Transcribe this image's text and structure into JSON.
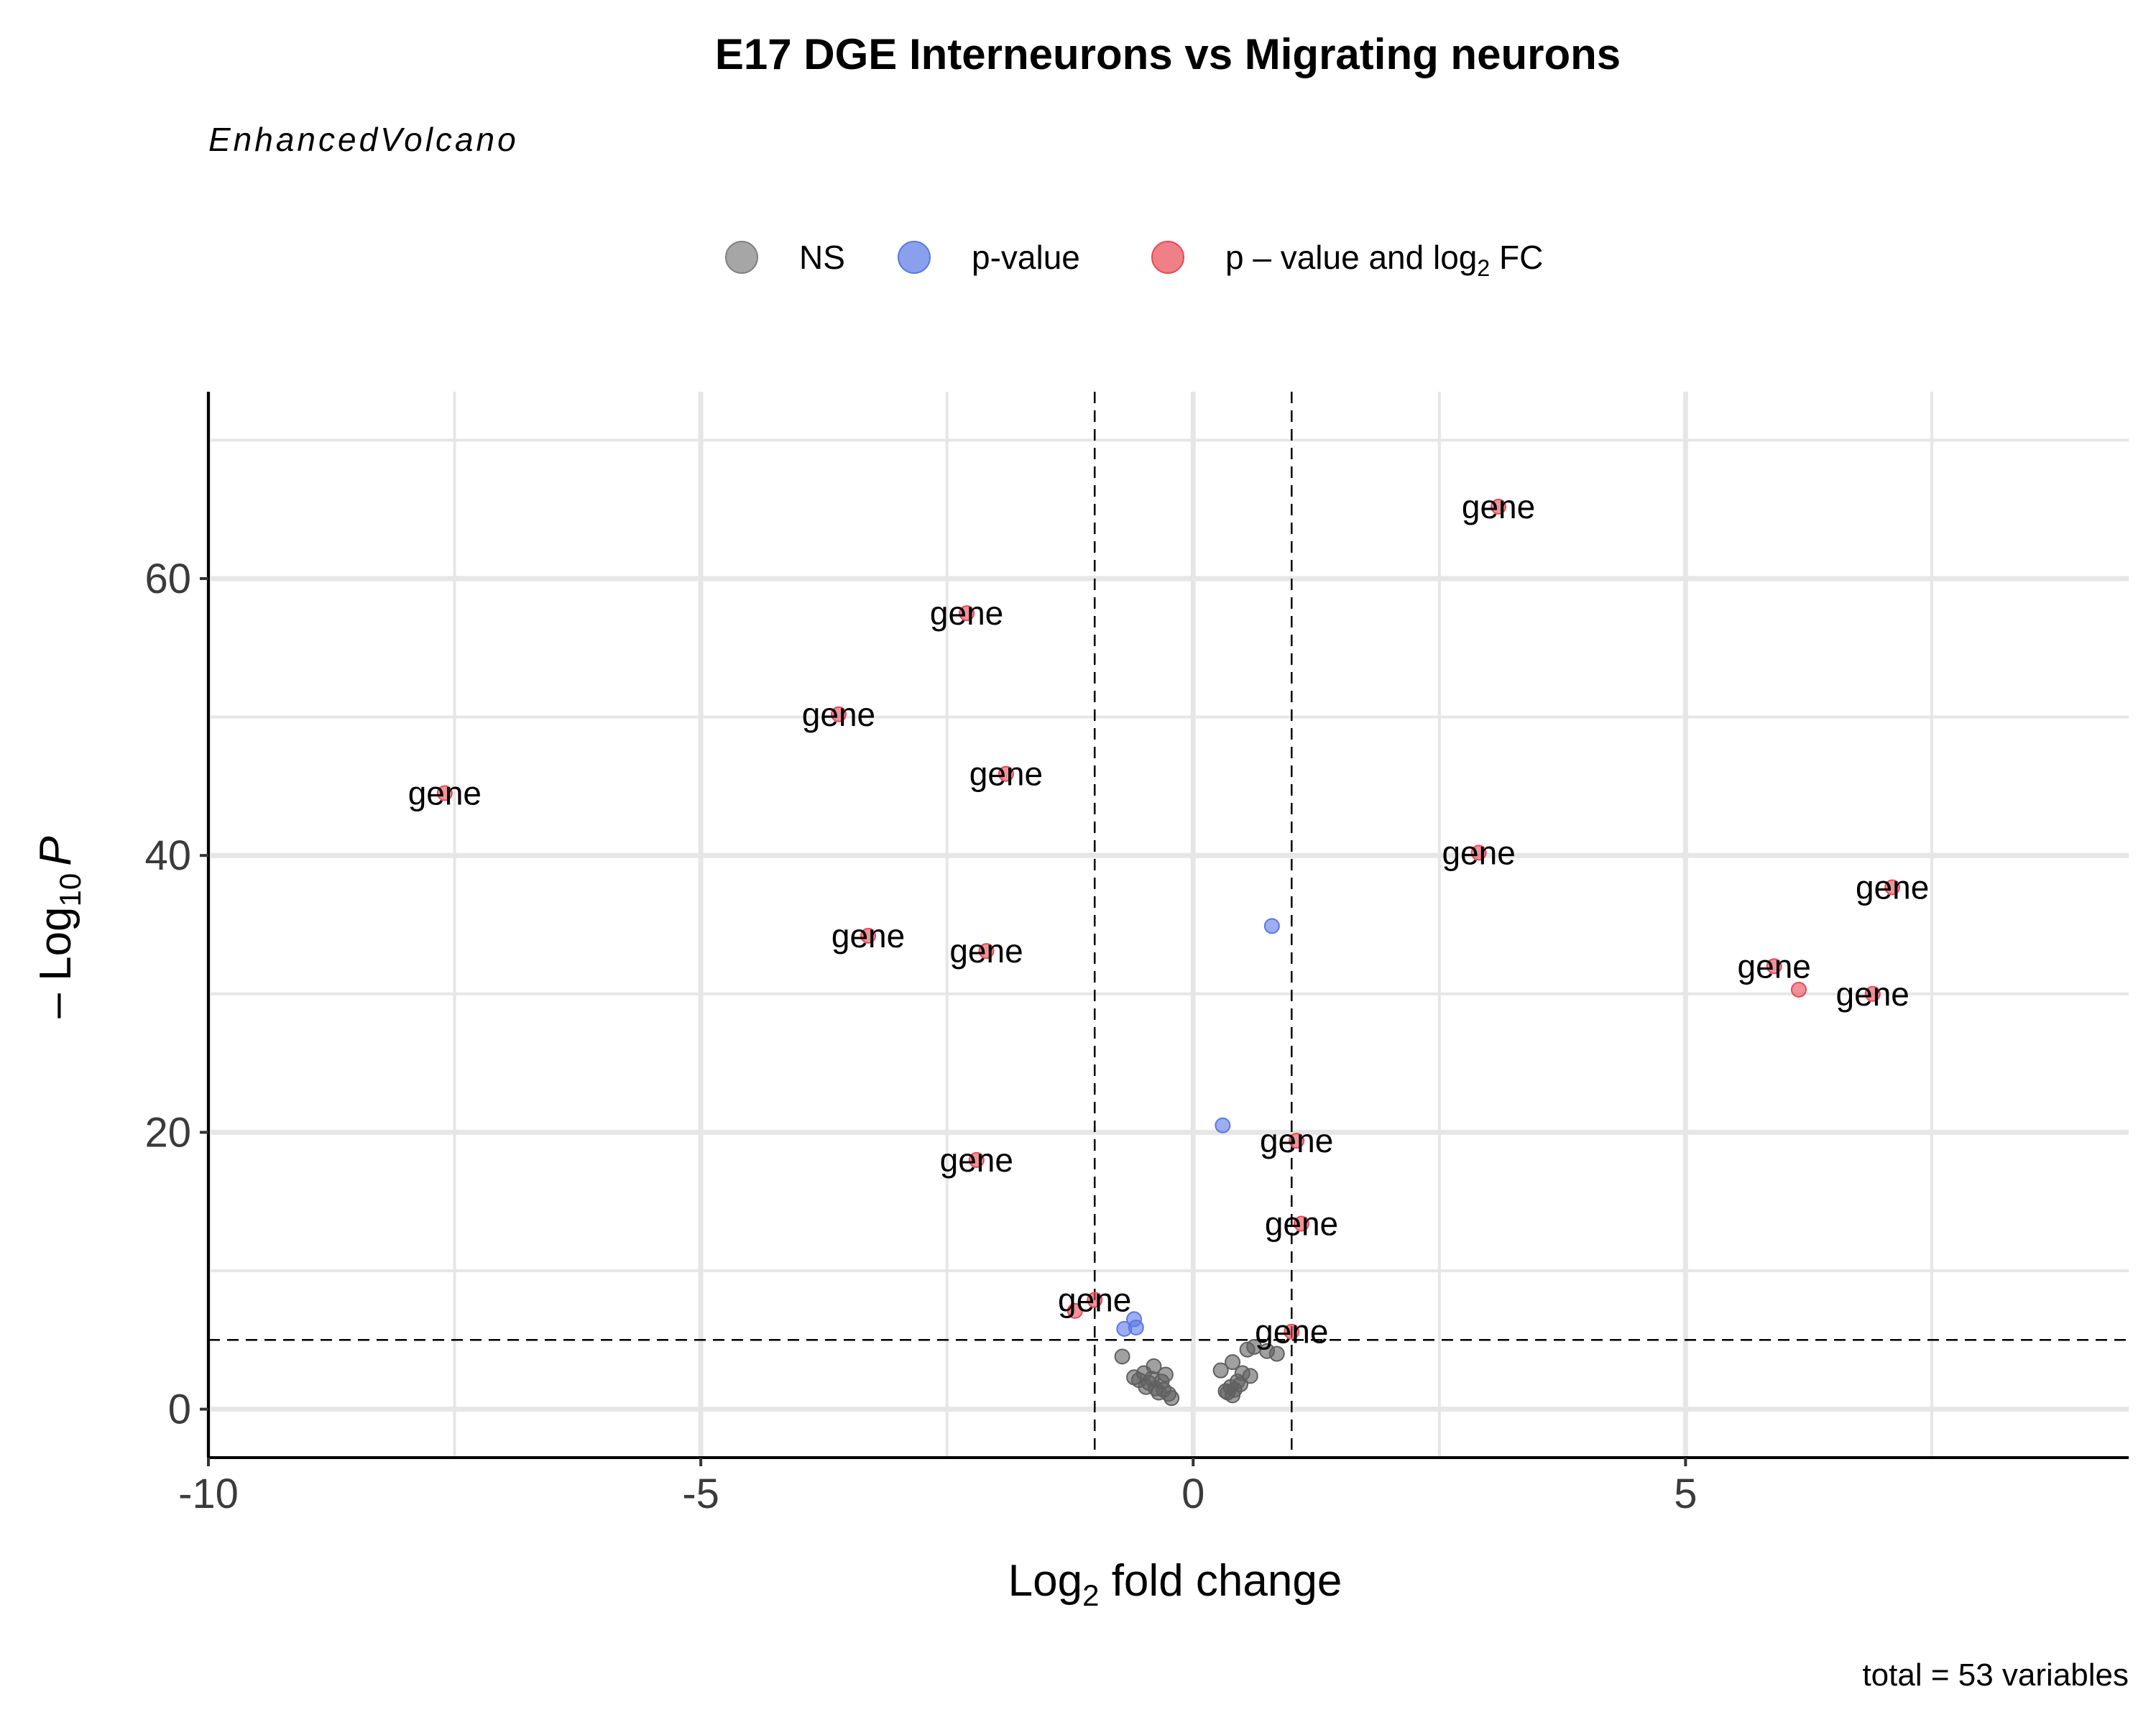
{
  "chart_data": {
    "type": "scatter",
    "title": "E17 DGE Interneurons vs Migrating neurons",
    "subtitle": "EnhancedVolcano",
    "xlabel_base": "Log",
    "xlabel_sub": "2",
    "xlabel_rest": " fold change",
    "ylabel_prefix": "– Log",
    "ylabel_sub": "10",
    "ylabel_var": "P",
    "caption": "total = 53 variables",
    "xlim": [
      -10,
      9.5
    ],
    "ylim": [
      -3.5,
      73.5
    ],
    "x_ticks": [
      -10,
      -5,
      0,
      5
    ],
    "x_tick_labels": [
      "-10",
      "-5",
      "0",
      "5"
    ],
    "y_ticks": [
      0,
      20,
      40,
      60
    ],
    "y_tick_labels": [
      "0",
      "20",
      "40",
      "60"
    ],
    "grid": true,
    "legend_position": "top",
    "fc_cutoff": 1,
    "p_cutoff_log10": 5,
    "legend": [
      {
        "key": "NS",
        "label": "NS",
        "color": "#808080"
      },
      {
        "key": "p",
        "label": "p-value",
        "color": "#5a78e6"
      },
      {
        "key": "pfc",
        "label_pre": "p – value and log",
        "label_sub": "2",
        "label_post": " FC",
        "color": "#e84a55"
      }
    ],
    "colors": {
      "NS": "#606060",
      "p": "#5a78e6",
      "pfc": "#e84a55"
    },
    "points": [
      {
        "x": 3.1,
        "y": 65.2,
        "cat": "pfc",
        "label": "gene"
      },
      {
        "x": -2.3,
        "y": 57.5,
        "cat": "pfc",
        "label": "gene"
      },
      {
        "x": -3.6,
        "y": 50.2,
        "cat": "pfc",
        "label": "gene"
      },
      {
        "x": -1.9,
        "y": 45.9,
        "cat": "pfc",
        "label": "gene"
      },
      {
        "x": -7.6,
        "y": 44.5,
        "cat": "pfc",
        "label": "gene"
      },
      {
        "x": 2.9,
        "y": 40.2,
        "cat": "pfc",
        "label": "gene"
      },
      {
        "x": 7.1,
        "y": 37.7,
        "cat": "pfc",
        "label": "gene"
      },
      {
        "x": -3.3,
        "y": 34.2,
        "cat": "pfc",
        "label": "gene"
      },
      {
        "x": -2.1,
        "y": 33.1,
        "cat": "pfc",
        "label": "gene"
      },
      {
        "x": 5.9,
        "y": 32.0,
        "cat": "pfc",
        "label": "gene"
      },
      {
        "x": 6.15,
        "y": 30.3,
        "cat": "pfc",
        "label": ""
      },
      {
        "x": 6.9,
        "y": 30.0,
        "cat": "pfc",
        "label": "gene"
      },
      {
        "x": 1.05,
        "y": 19.4,
        "cat": "pfc",
        "label": "gene"
      },
      {
        "x": -2.2,
        "y": 18.0,
        "cat": "pfc",
        "label": "gene"
      },
      {
        "x": 1.1,
        "y": 13.4,
        "cat": "pfc",
        "label": "gene"
      },
      {
        "x": -1.0,
        "y": 7.9,
        "cat": "pfc",
        "label": "gene"
      },
      {
        "x": -1.2,
        "y": 7.1,
        "cat": "pfc",
        "label": ""
      },
      {
        "x": 1.0,
        "y": 5.6,
        "cat": "pfc",
        "label": "gene"
      },
      {
        "x": 0.8,
        "y": 34.9,
        "cat": "p",
        "label": ""
      },
      {
        "x": 0.3,
        "y": 20.5,
        "cat": "p",
        "label": ""
      },
      {
        "x": -0.6,
        "y": 6.5,
        "cat": "p",
        "label": ""
      },
      {
        "x": -0.58,
        "y": 5.9,
        "cat": "p",
        "label": ""
      },
      {
        "x": -0.7,
        "y": 5.8,
        "cat": "p",
        "label": ""
      },
      {
        "x": -0.72,
        "y": 3.8,
        "cat": "NS",
        "label": ""
      },
      {
        "x": -0.55,
        "y": 2.1,
        "cat": "NS",
        "label": ""
      },
      {
        "x": -0.5,
        "y": 2.6,
        "cat": "NS",
        "label": ""
      },
      {
        "x": -0.45,
        "y": 1.9,
        "cat": "NS",
        "label": ""
      },
      {
        "x": -0.42,
        "y": 2.2,
        "cat": "NS",
        "label": ""
      },
      {
        "x": -0.4,
        "y": 3.1,
        "cat": "NS",
        "label": ""
      },
      {
        "x": -0.38,
        "y": 1.5,
        "cat": "NS",
        "label": ""
      },
      {
        "x": -0.35,
        "y": 1.2,
        "cat": "NS",
        "label": ""
      },
      {
        "x": -0.32,
        "y": 2.0,
        "cat": "NS",
        "label": ""
      },
      {
        "x": -0.3,
        "y": 1.4,
        "cat": "NS",
        "label": ""
      },
      {
        "x": -0.28,
        "y": 2.5,
        "cat": "NS",
        "label": ""
      },
      {
        "x": -0.25,
        "y": 1.1,
        "cat": "NS",
        "label": ""
      },
      {
        "x": -0.22,
        "y": 0.8,
        "cat": "NS",
        "label": ""
      },
      {
        "x": -0.6,
        "y": 2.3,
        "cat": "NS",
        "label": ""
      },
      {
        "x": -0.48,
        "y": 1.6,
        "cat": "NS",
        "label": ""
      },
      {
        "x": 0.28,
        "y": 2.8,
        "cat": "NS",
        "label": ""
      },
      {
        "x": 0.35,
        "y": 1.2,
        "cat": "NS",
        "label": ""
      },
      {
        "x": 0.38,
        "y": 1.6,
        "cat": "NS",
        "label": ""
      },
      {
        "x": 0.4,
        "y": 3.4,
        "cat": "NS",
        "label": ""
      },
      {
        "x": 0.42,
        "y": 1.4,
        "cat": "NS",
        "label": ""
      },
      {
        "x": 0.45,
        "y": 2.0,
        "cat": "NS",
        "label": ""
      },
      {
        "x": 0.48,
        "y": 1.8,
        "cat": "NS",
        "label": ""
      },
      {
        "x": 0.5,
        "y": 2.6,
        "cat": "NS",
        "label": ""
      },
      {
        "x": 0.55,
        "y": 4.3,
        "cat": "NS",
        "label": ""
      },
      {
        "x": 0.58,
        "y": 2.4,
        "cat": "NS",
        "label": ""
      },
      {
        "x": 0.62,
        "y": 4.5,
        "cat": "NS",
        "label": ""
      },
      {
        "x": 0.75,
        "y": 4.2,
        "cat": "NS",
        "label": ""
      },
      {
        "x": 0.85,
        "y": 4.0,
        "cat": "NS",
        "label": ""
      },
      {
        "x": 0.4,
        "y": 1.0,
        "cat": "NS",
        "label": ""
      },
      {
        "x": 0.33,
        "y": 1.3,
        "cat": "NS",
        "label": ""
      }
    ]
  }
}
